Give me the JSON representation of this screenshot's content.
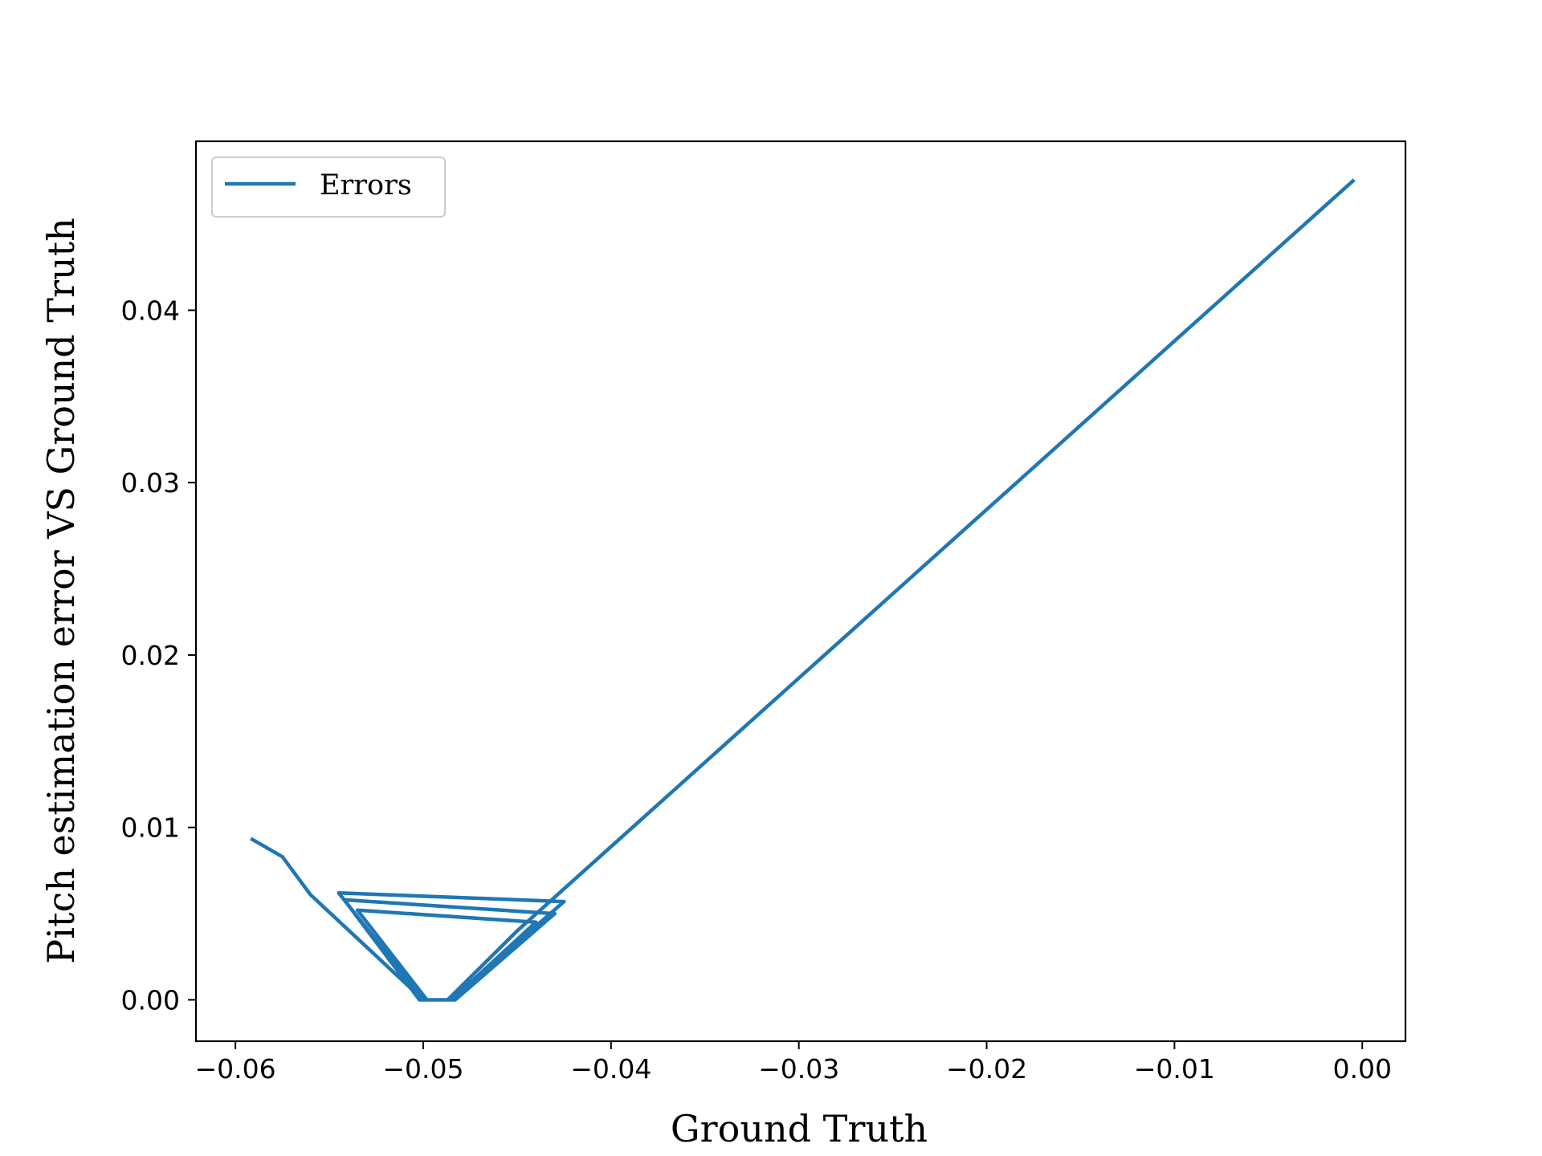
{
  "chart_data": {
    "type": "line",
    "xlabel": "Ground Truth",
    "ylabel": "Pitch estimation error VS Ground Truth",
    "xlim": [
      -0.0621,
      0.0023
    ],
    "ylim": [
      -0.0024,
      0.0498
    ],
    "xticks": [
      -0.06,
      -0.05,
      -0.04,
      -0.03,
      -0.02,
      -0.01,
      0.0
    ],
    "xtick_labels": [
      "−0.06",
      "−0.05",
      "−0.04",
      "−0.03",
      "−0.02",
      "−0.01",
      "0.00"
    ],
    "yticks": [
      0.0,
      0.01,
      0.02,
      0.03,
      0.04
    ],
    "ytick_labels": [
      "0.00",
      "0.01",
      "0.02",
      "0.03",
      "0.04"
    ],
    "grid": false,
    "legend": {
      "position": "upper-left",
      "entries": [
        "Errors"
      ]
    },
    "series": [
      {
        "name": "Errors",
        "color": "#1f77b4",
        "x": [
          -0.0591,
          -0.0575,
          -0.056,
          -0.05,
          -0.0485,
          -0.0425,
          -0.0545,
          -0.05,
          -0.0483,
          -0.043,
          -0.0542,
          -0.0502,
          -0.0485,
          -0.044,
          -0.0535,
          -0.0498,
          -0.0487,
          -0.045,
          -0.0005
        ],
        "y": [
          0.0093,
          0.0083,
          0.0061,
          0.0,
          0.0,
          0.0057,
          0.0062,
          0.0,
          0.0,
          0.005,
          0.0058,
          0.0,
          0.0,
          0.0045,
          0.0052,
          0.0,
          0.0,
          0.004,
          0.0475
        ]
      }
    ]
  }
}
